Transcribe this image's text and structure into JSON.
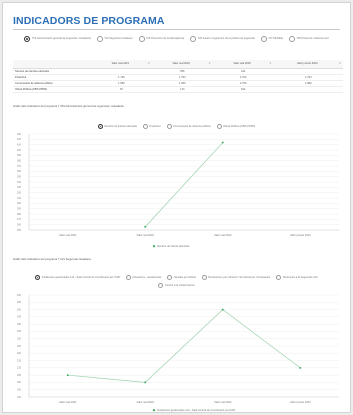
{
  "page": {
    "title": "INDICADORS DE PROGRAMA"
  },
  "program_radios": [
    {
      "label": "751 Administració general de seguretat i ciutadania",
      "selected": true
    },
    {
      "label": "723 Seguretat ciutadana",
      "selected": false
    },
    {
      "label": "725 Prevenció de la delinqüència",
      "selected": false
    },
    {
      "label": "726 Gestió i seguiment de la política de seguretat",
      "selected": false
    },
    {
      "label": "727 Mobilitat",
      "selected": false
    },
    {
      "label": "728 Protecció i defensa civil",
      "selected": false
    }
  ],
  "table": {
    "headers": [
      "",
      "Valor real 2021",
      "Valor real 2022",
      "Valor real 2023",
      "Valor previst 2024"
    ],
    "rows": [
      {
        "label": "Número de trámites efectuats",
        "values": [
          "",
          "256",
          "414",
          ""
        ]
      },
      {
        "label": "Preàmbul",
        "values": [
          "1.730",
          "1.764",
          "1.764",
          "1.764"
        ]
      },
      {
        "label": "Comunicació de defensa pública",
        "values": [
          "1.950",
          "1.950",
          "1.750",
          "1.980"
        ]
      },
      {
        "label": "Oferta Pública (OBS PPRS)",
        "values": [
          "97",
          "174",
          "192",
          ""
        ]
      }
    ]
  },
  "chart1": {
    "title": "Gràfic dels indicadors del programa 7 451 Administració general de seguretat i ciutadania",
    "radios": [
      {
        "label": "Nombre de tràmits efectuats",
        "selected": true
      },
      {
        "label": "Preàmbul",
        "selected": false
      },
      {
        "label": "Comunicació de defensa pública",
        "selected": false
      },
      {
        "label": "Oferta Pública (OBS PPRS)",
        "selected": false
      }
    ],
    "legend": "Nombre de tràmits efectuats",
    "colors": {
      "line": "#a7d7b6",
      "point": "#4fae6e"
    }
  },
  "chart2": {
    "title": "Gràfic dels indicadors del programa 7 221 Seguretat ciutadana",
    "radios": [
      {
        "label": "Incidències gestionades 112 - Sala Central de Coordinació per l'IGB",
        "selected": true
      },
      {
        "label": "Actuacions - assistències",
        "selected": false
      },
      {
        "label": "Atestats per delicte",
        "selected": false
      },
      {
        "label": "Resolucions per infracció / Sol·licitud per Comissaries",
        "selected": false
      },
      {
        "label": "Denúncies a la Seguretat (ctrl)",
        "selected": false
      },
      {
        "label": "Control a la Unitat Canina",
        "selected": false
      }
    ],
    "legend": "Incidències gestionades 112 - Sala Central de Coordinació per l'IGB",
    "colors": {
      "line": "#a7d7b6",
      "point": "#4fae6e"
    }
  },
  "chart_data": [
    {
      "type": "line",
      "categories": [
        "Valor real 2021",
        "Valor real 2022",
        "Valor real 2023",
        "Valor previst 2024"
      ],
      "series": [
        {
          "name": "Nombre de tràmits efectuats",
          "values": [
            null,
            256,
            414,
            null
          ]
        }
      ],
      "ylim": [
        250,
        430
      ],
      "yticks": [
        250,
        260,
        270,
        280,
        290,
        300,
        310,
        320,
        330,
        340,
        350,
        360,
        370,
        380,
        390,
        400,
        410,
        420,
        430
      ],
      "grid": true,
      "legend": "bottom"
    },
    {
      "type": "line",
      "categories": [
        "Valor real 2021",
        "Valor real 2022",
        "Valor real 2023",
        "Valor previst 2024"
      ],
      "series": [
        {
          "name": "Incidències gestionades 112 - Sala Central de Coordinació per l'IGB",
          "values": [
            205,
            200,
            250,
            210
          ]
        }
      ],
      "ylim": [
        190,
        260
      ],
      "yticks": [
        190,
        195,
        200,
        205,
        210,
        215,
        220,
        225,
        230,
        235,
        240,
        245,
        250,
        255,
        260
      ],
      "grid": true,
      "legend": "bottom"
    }
  ]
}
